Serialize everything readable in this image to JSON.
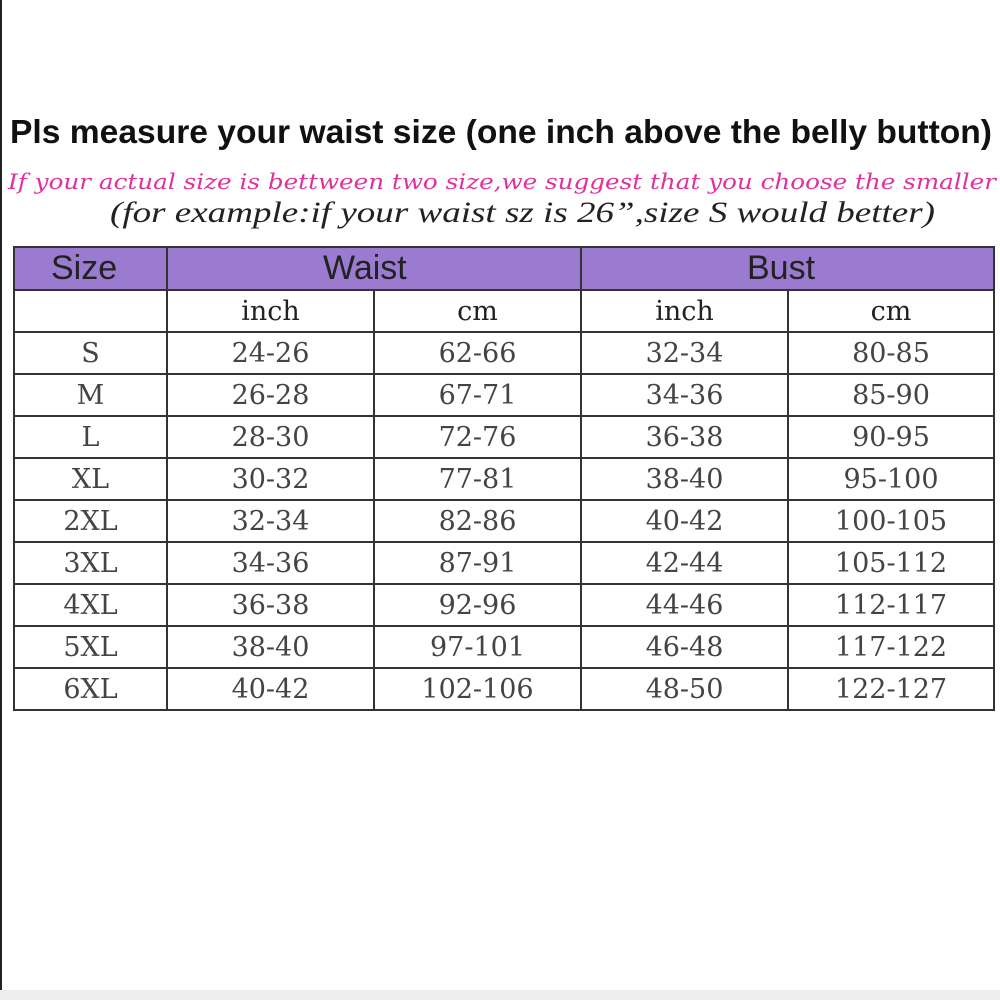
{
  "header": {
    "title": "Pls measure your waist size (one inch above the belly button)",
    "note": "If your actual size is bettween two size,we suggest that you choose the smaller",
    "example": "(for example:if your waist sz is 26”,size S would better)"
  },
  "table": {
    "groups": [
      "Size",
      "Waist",
      "Bust"
    ],
    "units": [
      "inch",
      "cm",
      "inch",
      "cm"
    ],
    "rows": [
      [
        "S",
        "24-26",
        "62-66",
        "32-34",
        "80-85"
      ],
      [
        "M",
        "26-28",
        "67-71",
        "34-36",
        "85-90"
      ],
      [
        "L",
        "28-30",
        "72-76",
        "36-38",
        "90-95"
      ],
      [
        "XL",
        "30-32",
        "77-81",
        "38-40",
        "95-100"
      ],
      [
        "2XL",
        "32-34",
        "82-86",
        "40-42",
        "100-105"
      ],
      [
        "3XL",
        "34-36",
        "87-91",
        "42-44",
        "105-112"
      ],
      [
        "4XL",
        "36-38",
        "92-96",
        "44-46",
        "112-117"
      ],
      [
        "5XL",
        "38-40",
        "97-101",
        "46-48",
        "117-122"
      ],
      [
        "6XL",
        "40-42",
        "102-106",
        "48-50",
        "122-127"
      ]
    ]
  }
}
